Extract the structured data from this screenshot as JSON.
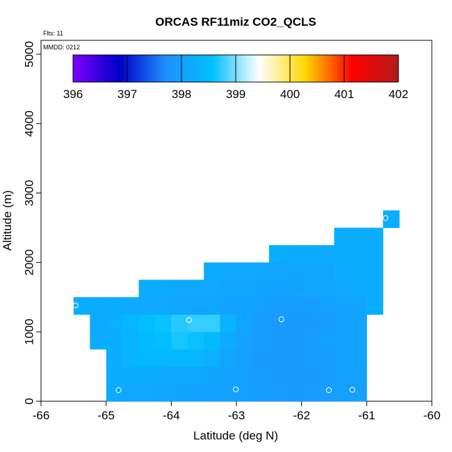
{
  "chart_data": {
    "type": "heatmap",
    "title": "ORCAS RF11miz CO2_QCLS",
    "annotations": {
      "flights": "Flts: 11",
      "mmdd": "MMDD: 0212"
    },
    "xlabel": "Latitude (deg N)",
    "ylabel": "Altitude (m)",
    "xlim": [
      -66,
      -60
    ],
    "ylim": [
      0,
      5200
    ],
    "xticks": [
      "-66",
      "-65",
      "-64",
      "-63",
      "-62",
      "-61",
      "-60"
    ],
    "yticks": [
      "0",
      "1000",
      "2000",
      "3000",
      "4000",
      "5000"
    ],
    "colorbar": {
      "min": 396,
      "max": 402,
      "ticks": [
        "396",
        "397",
        "398",
        "399",
        "400",
        "401",
        "402"
      ],
      "stops": [
        "#7f00ff",
        "#0000c8",
        "#1e90ff",
        "#00bfff",
        "#ffffff",
        "#ffd700",
        "#ff0000",
        "#b21a1a"
      ]
    },
    "cell_size": {
      "lat": 0.25,
      "alt": 250
    },
    "cells": [
      {
        "lat": -65.0,
        "alt": 0,
        "value": 398.2
      },
      {
        "lat": -64.75,
        "alt": 0,
        "value": 398.15
      },
      {
        "lat": -64.5,
        "alt": 0,
        "value": 398.15
      },
      {
        "lat": -64.25,
        "alt": 0,
        "value": 398.1
      },
      {
        "lat": -64.0,
        "alt": 0,
        "value": 398.1
      },
      {
        "lat": -63.75,
        "alt": 0,
        "value": 398.05
      },
      {
        "lat": -63.5,
        "alt": 0,
        "value": 398.05
      },
      {
        "lat": -63.25,
        "alt": 0,
        "value": 398.0
      },
      {
        "lat": -63.0,
        "alt": 0,
        "value": 398.0
      },
      {
        "lat": -62.75,
        "alt": 0,
        "value": 397.95
      },
      {
        "lat": -62.5,
        "alt": 0,
        "value": 397.95
      },
      {
        "lat": -62.25,
        "alt": 0,
        "value": 397.9
      },
      {
        "lat": -62.0,
        "alt": 0,
        "value": 397.95
      },
      {
        "lat": -61.75,
        "alt": 0,
        "value": 397.95
      },
      {
        "lat": -61.5,
        "alt": 0,
        "value": 398.0
      },
      {
        "lat": -61.25,
        "alt": 0,
        "value": 398.0
      },
      {
        "lat": -65.0,
        "alt": 250,
        "value": 398.25
      },
      {
        "lat": -64.75,
        "alt": 250,
        "value": 398.25
      },
      {
        "lat": -64.5,
        "alt": 250,
        "value": 398.25
      },
      {
        "lat": -64.25,
        "alt": 250,
        "value": 398.2
      },
      {
        "lat": -64.0,
        "alt": 250,
        "value": 398.15
      },
      {
        "lat": -63.75,
        "alt": 250,
        "value": 398.15
      },
      {
        "lat": -63.5,
        "alt": 250,
        "value": 398.1
      },
      {
        "lat": -63.25,
        "alt": 250,
        "value": 398.05
      },
      {
        "lat": -63.0,
        "alt": 250,
        "value": 398.0
      },
      {
        "lat": -62.75,
        "alt": 250,
        "value": 397.95
      },
      {
        "lat": -62.5,
        "alt": 250,
        "value": 397.9
      },
      {
        "lat": -62.25,
        "alt": 250,
        "value": 397.9
      },
      {
        "lat": -62.0,
        "alt": 250,
        "value": 397.9
      },
      {
        "lat": -61.75,
        "alt": 250,
        "value": 397.95
      },
      {
        "lat": -61.5,
        "alt": 250,
        "value": 398.0
      },
      {
        "lat": -61.25,
        "alt": 250,
        "value": 398.0
      },
      {
        "lat": -65.0,
        "alt": 500,
        "value": 398.25
      },
      {
        "lat": -64.75,
        "alt": 500,
        "value": 398.35
      },
      {
        "lat": -64.5,
        "alt": 500,
        "value": 398.45
      },
      {
        "lat": -64.25,
        "alt": 500,
        "value": 398.45
      },
      {
        "lat": -64.0,
        "alt": 500,
        "value": 398.45
      },
      {
        "lat": -63.75,
        "alt": 500,
        "value": 398.4
      },
      {
        "lat": -63.5,
        "alt": 500,
        "value": 398.3
      },
      {
        "lat": -63.25,
        "alt": 500,
        "value": 398.1
      },
      {
        "lat": -63.0,
        "alt": 500,
        "value": 398.0
      },
      {
        "lat": -62.75,
        "alt": 500,
        "value": 397.9
      },
      {
        "lat": -62.5,
        "alt": 500,
        "value": 397.9
      },
      {
        "lat": -62.25,
        "alt": 500,
        "value": 397.9
      },
      {
        "lat": -62.0,
        "alt": 500,
        "value": 397.95
      },
      {
        "lat": -61.75,
        "alt": 500,
        "value": 397.95
      },
      {
        "lat": -61.5,
        "alt": 500,
        "value": 398.0
      },
      {
        "lat": -61.25,
        "alt": 500,
        "value": 398.05
      },
      {
        "lat": -65.25,
        "alt": 750,
        "value": 398.25
      },
      {
        "lat": -65.0,
        "alt": 750,
        "value": 398.25
      },
      {
        "lat": -64.75,
        "alt": 750,
        "value": 398.35
      },
      {
        "lat": -64.5,
        "alt": 750,
        "value": 398.5
      },
      {
        "lat": -64.25,
        "alt": 750,
        "value": 398.55
      },
      {
        "lat": -64.0,
        "alt": 750,
        "value": 398.65
      },
      {
        "lat": -63.75,
        "alt": 750,
        "value": 398.6
      },
      {
        "lat": -63.5,
        "alt": 750,
        "value": 398.5
      },
      {
        "lat": -63.25,
        "alt": 750,
        "value": 398.2
      },
      {
        "lat": -63.0,
        "alt": 750,
        "value": 398.05
      },
      {
        "lat": -62.75,
        "alt": 750,
        "value": 397.95
      },
      {
        "lat": -62.5,
        "alt": 750,
        "value": 397.9
      },
      {
        "lat": -62.25,
        "alt": 750,
        "value": 397.9
      },
      {
        "lat": -62.0,
        "alt": 750,
        "value": 397.95
      },
      {
        "lat": -61.75,
        "alt": 750,
        "value": 398.0
      },
      {
        "lat": -61.5,
        "alt": 750,
        "value": 398.0
      },
      {
        "lat": -61.25,
        "alt": 750,
        "value": 398.05
      },
      {
        "lat": -65.25,
        "alt": 1000,
        "value": 398.2
      },
      {
        "lat": -65.0,
        "alt": 1000,
        "value": 398.3
      },
      {
        "lat": -64.75,
        "alt": 1000,
        "value": 398.45
      },
      {
        "lat": -64.5,
        "alt": 1000,
        "value": 398.55
      },
      {
        "lat": -64.25,
        "alt": 1000,
        "value": 398.6
      },
      {
        "lat": -64.0,
        "alt": 1000,
        "value": 398.7
      },
      {
        "lat": -63.75,
        "alt": 1000,
        "value": 398.75
      },
      {
        "lat": -63.5,
        "alt": 1000,
        "value": 398.75
      },
      {
        "lat": -63.25,
        "alt": 1000,
        "value": 398.35
      },
      {
        "lat": -63.0,
        "alt": 1000,
        "value": 398.1
      },
      {
        "lat": -62.75,
        "alt": 1000,
        "value": 397.95
      },
      {
        "lat": -62.5,
        "alt": 1000,
        "value": 397.9
      },
      {
        "lat": -62.25,
        "alt": 1000,
        "value": 397.9
      },
      {
        "lat": -62.0,
        "alt": 1000,
        "value": 397.9
      },
      {
        "lat": -61.75,
        "alt": 1000,
        "value": 397.95
      },
      {
        "lat": -61.5,
        "alt": 1000,
        "value": 398.0
      },
      {
        "lat": -61.25,
        "alt": 1000,
        "value": 398.05
      },
      {
        "lat": -65.5,
        "alt": 1250,
        "value": 398.25
      },
      {
        "lat": -65.25,
        "alt": 1250,
        "value": 398.25
      },
      {
        "lat": -65.0,
        "alt": 1250,
        "value": 398.25
      },
      {
        "lat": -64.75,
        "alt": 1250,
        "value": 398.2
      },
      {
        "lat": -64.5,
        "alt": 1250,
        "value": 398.15
      },
      {
        "lat": -64.25,
        "alt": 1250,
        "value": 398.15
      },
      {
        "lat": -64.0,
        "alt": 1250,
        "value": 398.1
      },
      {
        "lat": -63.75,
        "alt": 1250,
        "value": 398.1
      },
      {
        "lat": -63.5,
        "alt": 1250,
        "value": 398.1
      },
      {
        "lat": -63.25,
        "alt": 1250,
        "value": 398.05
      },
      {
        "lat": -63.0,
        "alt": 1250,
        "value": 398.05
      },
      {
        "lat": -62.75,
        "alt": 1250,
        "value": 398.0
      },
      {
        "lat": -62.5,
        "alt": 1250,
        "value": 397.95
      },
      {
        "lat": -62.25,
        "alt": 1250,
        "value": 397.95
      },
      {
        "lat": -62.0,
        "alt": 1250,
        "value": 397.95
      },
      {
        "lat": -61.75,
        "alt": 1250,
        "value": 398.0
      },
      {
        "lat": -61.5,
        "alt": 1250,
        "value": 398.05
      },
      {
        "lat": -61.25,
        "alt": 1250,
        "value": 398.1
      },
      {
        "lat": -61.0,
        "alt": 1250,
        "value": 398.25
      },
      {
        "lat": -64.5,
        "alt": 1500,
        "value": 398.2
      },
      {
        "lat": -64.25,
        "alt": 1500,
        "value": 398.2
      },
      {
        "lat": -64.0,
        "alt": 1500,
        "value": 398.15
      },
      {
        "lat": -63.75,
        "alt": 1500,
        "value": 398.15
      },
      {
        "lat": -63.5,
        "alt": 1500,
        "value": 398.15
      },
      {
        "lat": -63.25,
        "alt": 1500,
        "value": 398.1
      },
      {
        "lat": -63.0,
        "alt": 1500,
        "value": 398.1
      },
      {
        "lat": -62.75,
        "alt": 1500,
        "value": 398.05
      },
      {
        "lat": -62.5,
        "alt": 1500,
        "value": 398.05
      },
      {
        "lat": -62.25,
        "alt": 1500,
        "value": 398.05
      },
      {
        "lat": -62.0,
        "alt": 1500,
        "value": 398.1
      },
      {
        "lat": -61.75,
        "alt": 1500,
        "value": 398.1
      },
      {
        "lat": -61.5,
        "alt": 1500,
        "value": 398.15
      },
      {
        "lat": -61.25,
        "alt": 1500,
        "value": 398.2
      },
      {
        "lat": -61.0,
        "alt": 1500,
        "value": 398.25
      },
      {
        "lat": -63.5,
        "alt": 1750,
        "value": 398.2
      },
      {
        "lat": -63.25,
        "alt": 1750,
        "value": 398.15
      },
      {
        "lat": -63.0,
        "alt": 1750,
        "value": 398.15
      },
      {
        "lat": -62.75,
        "alt": 1750,
        "value": 398.15
      },
      {
        "lat": -62.5,
        "alt": 1750,
        "value": 398.1
      },
      {
        "lat": -62.25,
        "alt": 1750,
        "value": 398.1
      },
      {
        "lat": -62.0,
        "alt": 1750,
        "value": 398.1
      },
      {
        "lat": -61.75,
        "alt": 1750,
        "value": 398.1
      },
      {
        "lat": -61.5,
        "alt": 1750,
        "value": 398.2
      },
      {
        "lat": -61.25,
        "alt": 1750,
        "value": 398.25
      },
      {
        "lat": -61.0,
        "alt": 1750,
        "value": 398.25
      },
      {
        "lat": -62.5,
        "alt": 2000,
        "value": 398.25
      },
      {
        "lat": -62.25,
        "alt": 2000,
        "value": 398.2
      },
      {
        "lat": -62.0,
        "alt": 2000,
        "value": 398.2
      },
      {
        "lat": -61.75,
        "alt": 2000,
        "value": 398.2
      },
      {
        "lat": -61.5,
        "alt": 2000,
        "value": 398.25
      },
      {
        "lat": -61.25,
        "alt": 2000,
        "value": 398.25
      },
      {
        "lat": -61.0,
        "alt": 2000,
        "value": 398.25
      },
      {
        "lat": -61.5,
        "alt": 2250,
        "value": 398.25
      },
      {
        "lat": -61.25,
        "alt": 2250,
        "value": 398.25
      },
      {
        "lat": -61.0,
        "alt": 2250,
        "value": 398.25
      },
      {
        "lat": -60.75,
        "alt": 2500,
        "value": 398.25
      }
    ],
    "points": [
      {
        "lat": -65.47,
        "alt": 1380
      },
      {
        "lat": -63.73,
        "alt": 1170
      },
      {
        "lat": -62.31,
        "alt": 1180
      },
      {
        "lat": -64.81,
        "alt": 160
      },
      {
        "lat": -63.01,
        "alt": 170
      },
      {
        "lat": -61.58,
        "alt": 160
      },
      {
        "lat": -61.22,
        "alt": 165
      },
      {
        "lat": -60.71,
        "alt": 2640
      }
    ]
  }
}
